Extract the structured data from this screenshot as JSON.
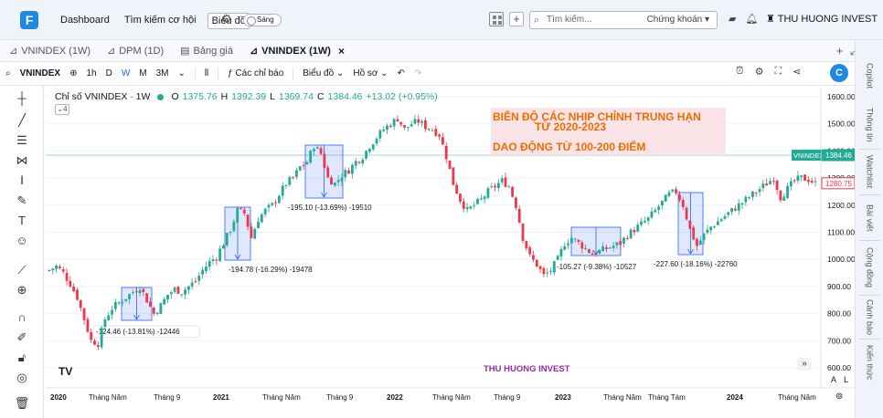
{
  "topbar": {
    "logo": "F",
    "nav": [
      "Dashboard",
      "Tìm kiếm cơ hội",
      "Biểu đồ"
    ],
    "theme_toggle": "Sáng",
    "search_placeholder": "Tìm kiếm...",
    "search_category": "Chứng khoán",
    "user_name": "THU HUONG INVEST"
  },
  "tabs": [
    {
      "label": "VNINDEX (1W)",
      "active": false
    },
    {
      "label": "DPM (1D)",
      "active": false
    },
    {
      "label": "Bảng giá",
      "active": false
    },
    {
      "label": "VNINDEX (1W)",
      "active": true
    }
  ],
  "toolbar": {
    "symbol": "VNINDEX",
    "timeframes": [
      "1h",
      "D",
      "W",
      "M",
      "3M"
    ],
    "selected_timeframe": "W",
    "indicators": "Các chỉ báo",
    "chart_menu": "Biểu đồ",
    "profile_menu": "Hồ sơ"
  },
  "right_rail": [
    "Copilot",
    "Thông tin",
    "Watchlist",
    "Bài viết",
    "Cộng đồng",
    "Cảnh báo",
    "Kiến thức"
  ],
  "legend": {
    "title": "Chỉ số VNINDEX · 1W",
    "ohlc": [
      {
        "label": "O",
        "value": "1375.76"
      },
      {
        "label": "H",
        "value": "1392.39"
      },
      {
        "label": "L",
        "value": "1369.74"
      },
      {
        "label": "C",
        "value": "1384.46"
      }
    ],
    "change": "+13.02 (+0.95%)",
    "collapsed_count": "4"
  },
  "annotation": {
    "line1": "BIÊN ĐỘ CÁC NHỊP CHỈNH TRUNG HẠN",
    "line2": "TỪ 2020-2023",
    "line3": "DAO ĐỘNG TỪ 100-200 ĐIỂM"
  },
  "watermark": "THU HUONG INVEST",
  "bottom_right": {
    "auto": "A",
    "log": "L"
  },
  "colors": {
    "up": "#22ab94",
    "down": "#f23645",
    "box": "#2962ff",
    "accent": "#2962ff",
    "annotation": "#ef6c00",
    "watermark": "#9c27b0"
  },
  "chart_data": {
    "type": "candlestick",
    "y_ticks": [
      600,
      700,
      800,
      900,
      1000,
      1100,
      1200,
      1300,
      1400,
      1500,
      1600
    ],
    "x_ticks": [
      "2020",
      "Tháng Năm",
      "Tháng 9",
      "2021",
      "Tháng Năm",
      "Tháng 9",
      "2022",
      "Tháng Năm",
      "Tháng 9",
      "2023",
      "Tháng Năm",
      "Tháng Tám",
      "2024",
      "Tháng Năm"
    ],
    "ylim": [
      560,
      1620
    ],
    "price_labels": [
      {
        "label": "VNINDEX",
        "value": "1384.46",
        "price": 1384.46,
        "color": "#22ab94"
      },
      {
        "label": "",
        "value": "1280.75",
        "price": 1280.75,
        "color": "#f23645"
      }
    ],
    "close_path": [
      [
        0,
        960
      ],
      [
        2,
        975
      ],
      [
        4,
        950
      ],
      [
        6,
        910
      ],
      [
        8,
        860
      ],
      [
        10,
        780
      ],
      [
        12,
        700
      ],
      [
        14,
        690
      ],
      [
        16,
        780
      ],
      [
        18,
        820
      ],
      [
        20,
        840
      ],
      [
        22,
        860
      ],
      [
        24,
        880
      ],
      [
        26,
        900
      ],
      [
        28,
        850
      ],
      [
        30,
        800
      ],
      [
        32,
        830
      ],
      [
        34,
        870
      ],
      [
        36,
        890
      ],
      [
        38,
        880
      ],
      [
        40,
        900
      ],
      [
        42,
        920
      ],
      [
        44,
        960
      ],
      [
        46,
        990
      ],
      [
        48,
        1010
      ],
      [
        50,
        1060
      ],
      [
        52,
        1110
      ],
      [
        54,
        1180
      ],
      [
        56,
        1170
      ],
      [
        58,
        1080
      ],
      [
        60,
        1150
      ],
      [
        62,
        1180
      ],
      [
        64,
        1200
      ],
      [
        66,
        1240
      ],
      [
        68,
        1280
      ],
      [
        70,
        1300
      ],
      [
        72,
        1340
      ],
      [
        74,
        1360
      ],
      [
        76,
        1420
      ],
      [
        78,
        1390
      ],
      [
        80,
        1300
      ],
      [
        82,
        1280
      ],
      [
        84,
        1310
      ],
      [
        86,
        1330
      ],
      [
        88,
        1360
      ],
      [
        90,
        1380
      ],
      [
        92,
        1420
      ],
      [
        94,
        1450
      ],
      [
        96,
        1480
      ],
      [
        98,
        1500
      ],
      [
        100,
        1520
      ],
      [
        102,
        1480
      ],
      [
        104,
        1500
      ],
      [
        106,
        1510
      ],
      [
        108,
        1490
      ],
      [
        110,
        1480
      ],
      [
        112,
        1460
      ],
      [
        114,
        1380
      ],
      [
        116,
        1280
      ],
      [
        118,
        1220
      ],
      [
        120,
        1180
      ],
      [
        122,
        1200
      ],
      [
        124,
        1220
      ],
      [
        126,
        1250
      ],
      [
        128,
        1270
      ],
      [
        130,
        1290
      ],
      [
        132,
        1270
      ],
      [
        134,
        1200
      ],
      [
        136,
        1080
      ],
      [
        138,
        1010
      ],
      [
        140,
        980
      ],
      [
        142,
        940
      ],
      [
        144,
        960
      ],
      [
        146,
        1000
      ],
      [
        148,
        1060
      ],
      [
        150,
        1080
      ],
      [
        152,
        1060
      ],
      [
        154,
        1040
      ],
      [
        156,
        1020
      ],
      [
        158,
        1030
      ],
      [
        160,
        1040
      ],
      [
        162,
        1050
      ],
      [
        164,
        1060
      ],
      [
        166,
        1090
      ],
      [
        168,
        1110
      ],
      [
        170,
        1130
      ],
      [
        172,
        1150
      ],
      [
        174,
        1180
      ],
      [
        176,
        1210
      ],
      [
        178,
        1240
      ],
      [
        180,
        1250
      ],
      [
        182,
        1200
      ],
      [
        184,
        1110
      ],
      [
        186,
        1050
      ],
      [
        188,
        1090
      ],
      [
        190,
        1120
      ],
      [
        192,
        1140
      ],
      [
        194,
        1160
      ],
      [
        196,
        1180
      ],
      [
        198,
        1200
      ],
      [
        200,
        1220
      ],
      [
        202,
        1240
      ],
      [
        204,
        1260
      ],
      [
        206,
        1280
      ],
      [
        208,
        1300
      ],
      [
        210,
        1230
      ],
      [
        212,
        1260
      ],
      [
        214,
        1290
      ],
      [
        216,
        1300
      ],
      [
        218,
        1295
      ],
      [
        220,
        1280
      ]
    ],
    "corrections": [
      {
        "label": "-124.46 (-13.81%) -12446"
      },
      {
        "label": "-194.78 (-16.29%) -19478"
      },
      {
        "label": "-195.10 (-13.69%) -19510"
      },
      {
        "label": "-105.27 (-9.38%) -10527"
      },
      {
        "label": "-227.60 (-18.16%) -22760"
      }
    ]
  }
}
